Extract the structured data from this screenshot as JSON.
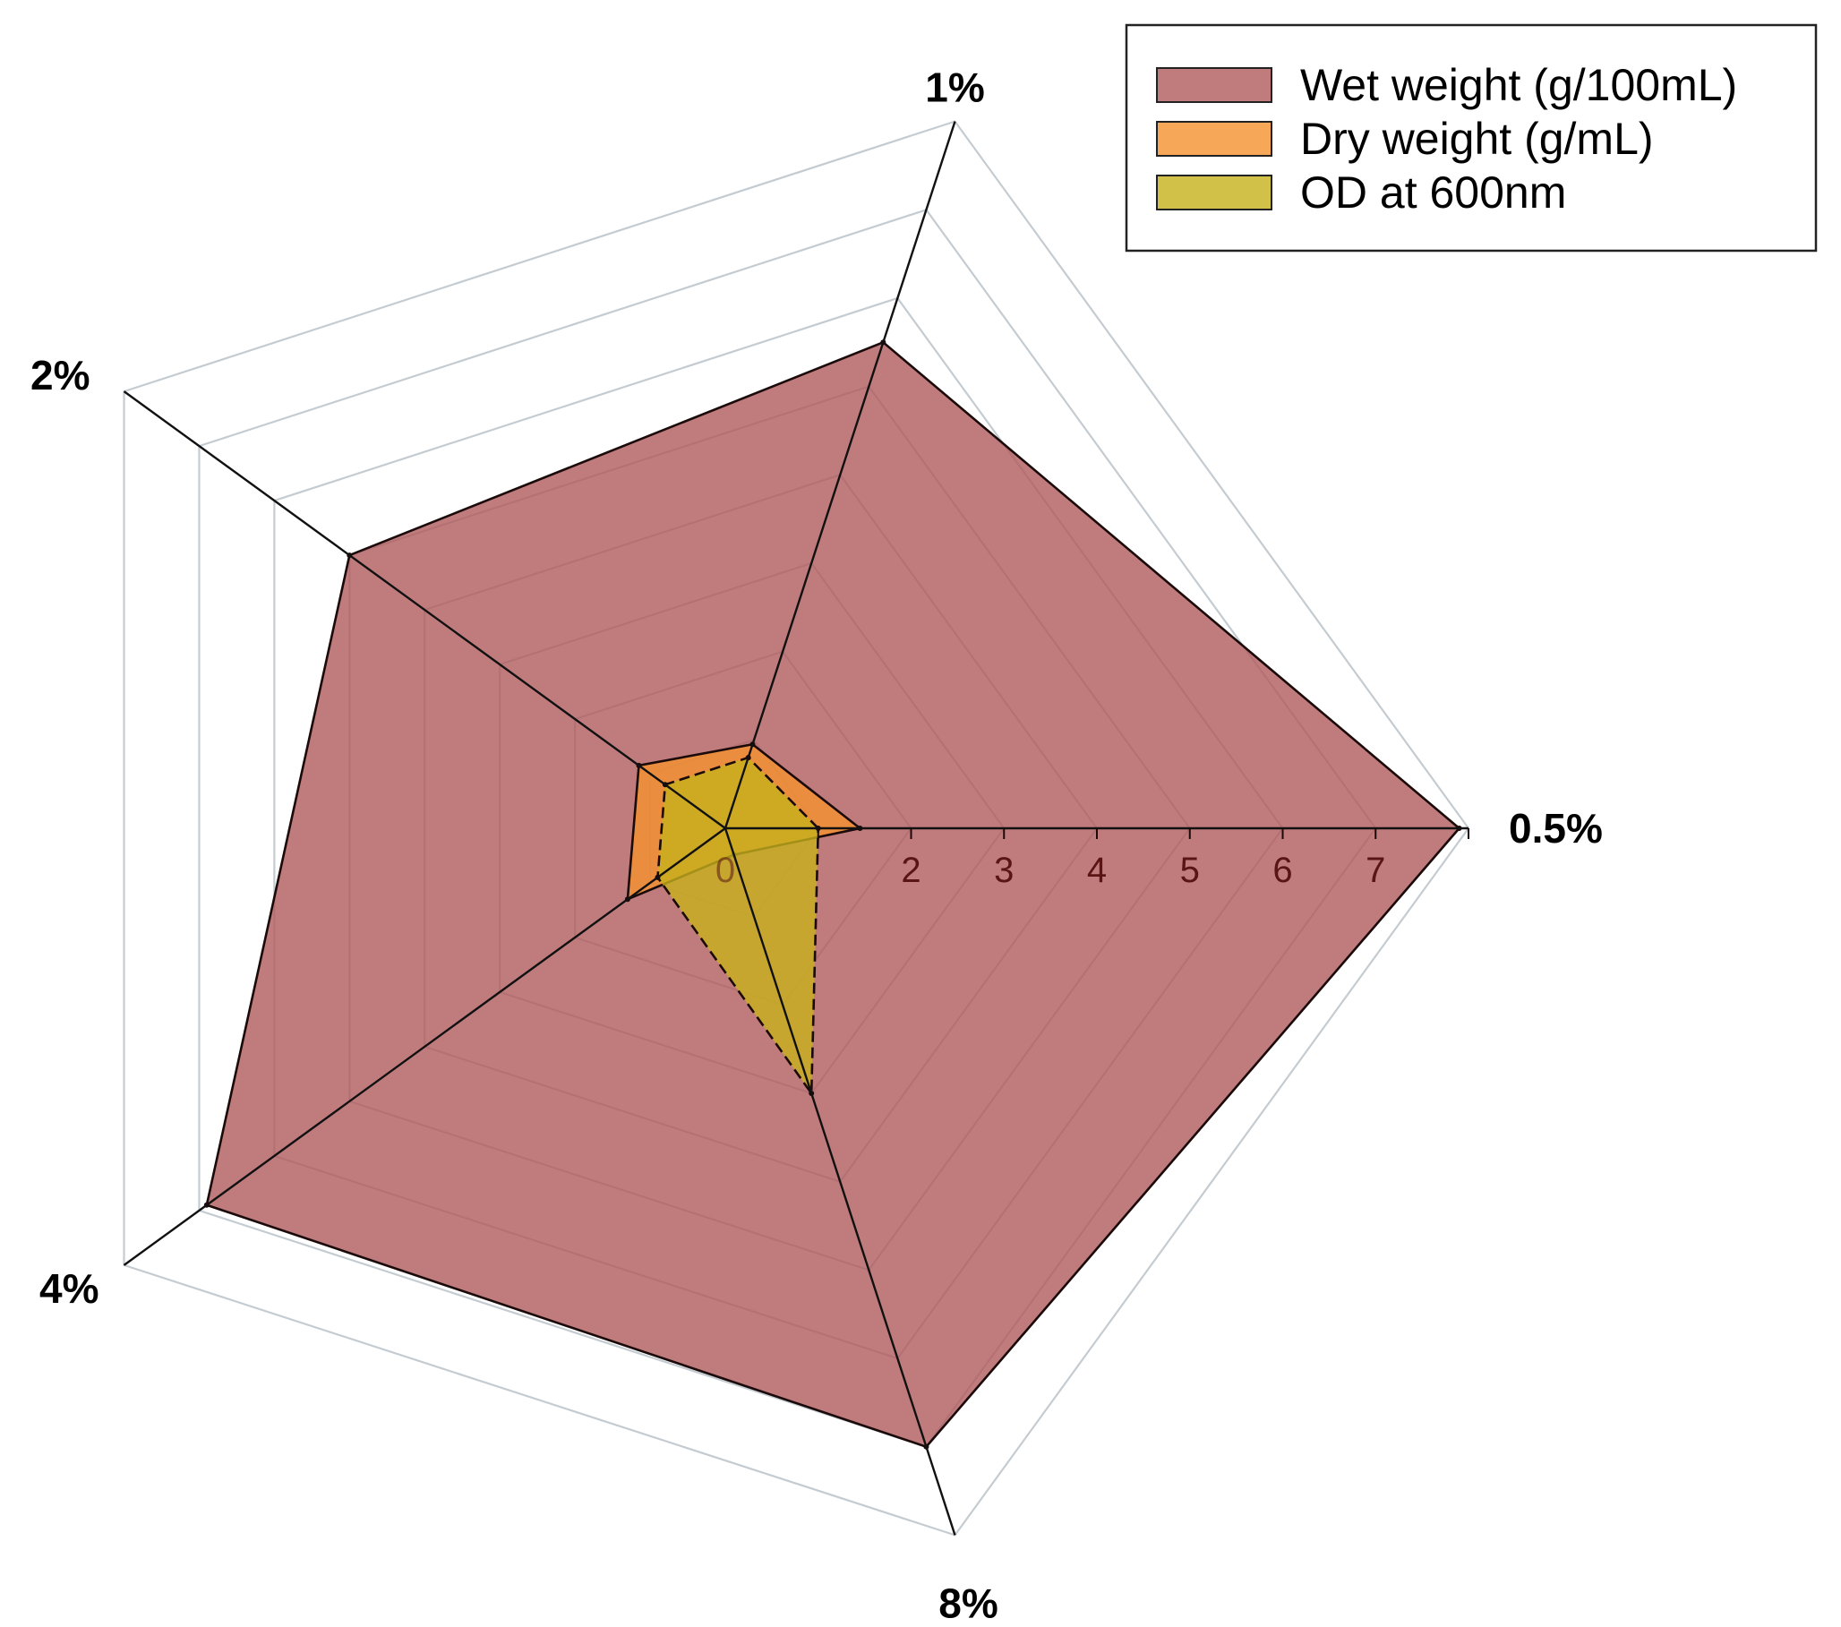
{
  "chart_data": {
    "type": "radar",
    "categories": [
      "0.5%",
      "1%",
      "2%",
      "4%",
      "8%"
    ],
    "rlim": [
      0,
      8
    ],
    "ticks": [
      0,
      1,
      2,
      3,
      4,
      5,
      6,
      7,
      8
    ],
    "tick_labels": [
      "0",
      "",
      "2",
      "3",
      "4",
      "5",
      "6",
      "7",
      ""
    ],
    "grid": true,
    "legend_position": "top-right",
    "series": [
      {
        "name": "Wet weight (g/100mL)",
        "values": [
          7.9,
          5.5,
          5.0,
          6.9,
          7.0
        ],
        "fill": "#b05a5c",
        "stroke": "#1a0a0a",
        "line_style": "solid"
      },
      {
        "name": "Dry weight (g/mL)",
        "values": [
          1.45,
          0.95,
          1.15,
          1.3,
          0.3
        ],
        "fill": "#f4922e",
        "stroke": "#1a0a0a",
        "line_style": "solid"
      },
      {
        "name": "OD at 600nm",
        "values": [
          1.0,
          0.8,
          0.8,
          0.9,
          3.0
        ],
        "fill": "#c7b21c",
        "stroke": "#1a0a0a",
        "line_style": "dashed"
      }
    ]
  }
}
